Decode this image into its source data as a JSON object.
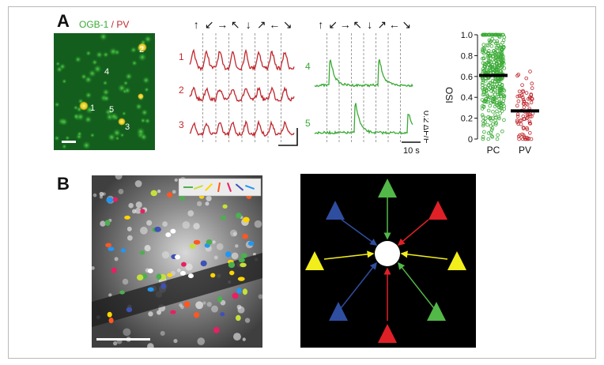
{
  "panels": {
    "a": {
      "letter": "A",
      "micrograph_label_ogb": "OGB-1",
      "micrograph_label_sep": " / ",
      "micrograph_label_pv": "PV",
      "cell_numbers": [
        "2",
        "4",
        "1",
        "5",
        "3"
      ],
      "arrows": [
        "↑",
        "↙",
        "→",
        "↖",
        "↓",
        "↗",
        "←",
        "↘"
      ],
      "red_trace_labels": [
        "1",
        "2",
        "3"
      ],
      "green_trace_labels": [
        "4",
        "5"
      ],
      "scale_y": "0.2 ΔF/F",
      "scale_x": "10 s",
      "colors": {
        "pc": "#3aaa35",
        "pv": "#c0272d",
        "ogb_text": "#3aaa35",
        "pv_text": "#c0272d"
      }
    },
    "b": {
      "letter": "B",
      "legend_colors": [
        "#4caf50",
        "#c6e03a",
        "#ffd600",
        "#ff5722",
        "#e91e63",
        "#3f51b5",
        "#2196f3"
      ],
      "diagram_colors": {
        "green": "#52b848",
        "red": "#e02027",
        "yellow": "#f2ee1c",
        "blue": "#2f4ea0"
      }
    }
  },
  "chart_data": {
    "type": "scatter",
    "title": "",
    "xlabel": "",
    "ylabel": "OSI",
    "categories": [
      "PC",
      "PV"
    ],
    "ylim": [
      0,
      1.0
    ],
    "yticks": [
      "0",
      "0.2",
      "0.4",
      "0.6",
      "0.8",
      "1.0"
    ],
    "series": [
      {
        "name": "PC",
        "color": "#3aaa35",
        "mean": 0.61,
        "n_points": 400
      },
      {
        "name": "PV",
        "color": "#c0272d",
        "mean": 0.27,
        "n_points": 80
      }
    ],
    "grid": false
  }
}
